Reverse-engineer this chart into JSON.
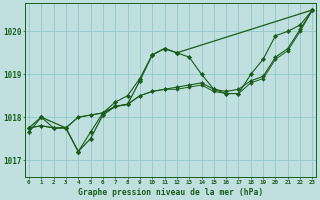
{
  "background_color": "#c0e0e0",
  "grid_color": "#88c4c4",
  "line_color": "#1a5c1a",
  "title": "Graphe pression niveau de la mer (hPa)",
  "ylim": [
    1016.6,
    1020.65
  ],
  "yticks": [
    1017,
    1018,
    1019,
    1020
  ],
  "xlim": [
    -0.3,
    23.3
  ],
  "xticks": [
    0,
    1,
    2,
    3,
    4,
    5,
    6,
    7,
    8,
    9,
    10,
    11,
    12,
    13,
    14,
    15,
    16,
    17,
    18,
    19,
    20,
    21,
    22,
    23
  ],
  "series_wiggly": [
    1017.65,
    1018.0,
    1017.75,
    1017.75,
    1017.2,
    1017.65,
    1018.1,
    1018.35,
    1018.5,
    1018.9,
    1019.45,
    1019.6,
    1019.5,
    1019.4,
    1019.0,
    1018.65,
    1018.55,
    1018.55,
    1019.0,
    1019.35,
    1019.9,
    1020.0,
    1020.15,
    1020.5
  ],
  "series_mid1": [
    1017.75,
    1017.8,
    1017.75,
    1017.75,
    1018.0,
    1018.05,
    1018.1,
    1018.25,
    1018.3,
    1018.5,
    1018.6,
    1018.65,
    1018.7,
    1018.75,
    1018.8,
    1018.65,
    1018.6,
    1018.65,
    1018.85,
    1018.95,
    1019.4,
    1019.6,
    1020.05,
    1020.5
  ],
  "series_mid2": [
    1017.75,
    1017.8,
    1017.75,
    1017.75,
    1018.0,
    1018.05,
    1018.1,
    1018.25,
    1018.3,
    1018.5,
    1018.6,
    1018.65,
    1018.65,
    1018.7,
    1018.75,
    1018.6,
    1018.55,
    1018.55,
    1018.8,
    1018.9,
    1019.35,
    1019.55,
    1020.0,
    1020.5
  ],
  "series_line_x": [
    0,
    1,
    3,
    4,
    5,
    6,
    7,
    8,
    9,
    10,
    11,
    12,
    23
  ],
  "series_line_y": [
    1017.75,
    1018.0,
    1017.75,
    1017.2,
    1017.5,
    1018.05,
    1018.25,
    1018.3,
    1018.85,
    1019.45,
    1019.6,
    1019.5,
    1020.5
  ]
}
